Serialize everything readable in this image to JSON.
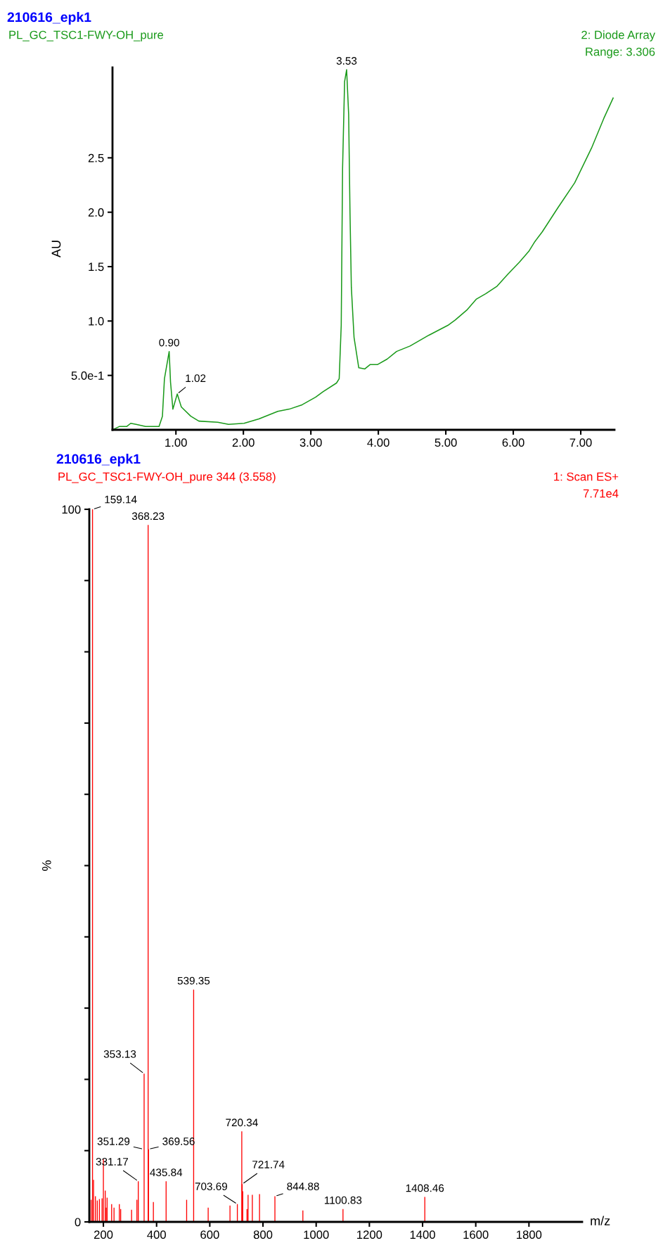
{
  "chart_data": [
    {
      "type": "line",
      "title": "210616_epk1",
      "subtitle": "PL_GC_TSC1-FWY-OH_pure",
      "ylabel": "AU",
      "annotations": [
        "2: Diode Array",
        "Range: 3.306",
        {
          "text": "3.53",
          "x": 3.53,
          "y": 3.31
        },
        {
          "text": "0.90",
          "x": 0.9,
          "y": 0.72
        },
        {
          "text": "1.02",
          "x": 1.02,
          "y": 0.33
        }
      ],
      "xlim": [
        0.06,
        7.5
      ],
      "ylim": [
        0,
        3.33
      ],
      "xticks": [
        {
          "value": 1,
          "label": "1.00"
        },
        {
          "value": 2,
          "label": "2.00"
        },
        {
          "value": 3,
          "label": "3.00"
        },
        {
          "value": 4,
          "label": "4.00"
        },
        {
          "value": 5,
          "label": "5.00"
        },
        {
          "value": 6,
          "label": "6.00"
        },
        {
          "value": 7,
          "label": "7.00"
        }
      ],
      "yticks": [
        {
          "value": 0.5,
          "label": "5.0e-1"
        },
        {
          "value": 1,
          "label": "1.0"
        },
        {
          "value": 1.5,
          "label": "1.5"
        },
        {
          "value": 2,
          "label": "2.0"
        },
        {
          "value": 2.5,
          "label": "2.5"
        }
      ],
      "grid": false,
      "legend": false,
      "series": [
        {
          "color": "#1a9a1a",
          "x": [
            0.06,
            0.16,
            0.27,
            0.33,
            0.41,
            0.55,
            0.75,
            0.8,
            0.83,
            0.9,
            0.92,
            0.955,
            1.02,
            1.08,
            1.22,
            1.34,
            1.62,
            1.78,
            2.01,
            2.23,
            2.51,
            2.68,
            2.87,
            3.07,
            3.18,
            3.38,
            3.42,
            3.45,
            3.47,
            3.5,
            3.53,
            3.56,
            3.58,
            3.6,
            3.64,
            3.71,
            3.8,
            3.88,
            3.99,
            4.13,
            4.27,
            4.47,
            4.75,
            5.03,
            5.14,
            5.31,
            5.45,
            5.59,
            5.76,
            5.92,
            6.09,
            6.23,
            6.32,
            6.43,
            6.66,
            6.91,
            7.16,
            7.34,
            7.48
          ],
          "values": [
            0.0,
            0.03,
            0.03,
            0.06,
            0.05,
            0.03,
            0.03,
            0.125,
            0.47,
            0.72,
            0.44,
            0.19,
            0.33,
            0.21,
            0.125,
            0.08,
            0.07,
            0.05,
            0.06,
            0.1,
            0.17,
            0.19,
            0.23,
            0.3,
            0.35,
            0.43,
            0.47,
            0.96,
            2.4,
            3.2,
            3.31,
            2.9,
            2.0,
            1.31,
            0.85,
            0.57,
            0.56,
            0.6,
            0.6,
            0.65,
            0.72,
            0.77,
            0.87,
            0.96,
            1.01,
            1.1,
            1.2,
            1.25,
            1.32,
            1.43,
            1.54,
            1.64,
            1.73,
            1.82,
            2.04,
            2.27,
            2.59,
            2.86,
            3.05
          ]
        }
      ]
    },
    {
      "type": "bar",
      "title": "210616_epk1",
      "subtitle": "PL_GC_TSC1-FWY-OH_pure 344 (3.558)",
      "ylabel": "%",
      "xlabel": "m/z",
      "annotations": [
        "1: Scan ES+",
        "7.71e4",
        {
          "text": "159.14",
          "x": 159.14,
          "y": 100
        },
        {
          "text": "368.23",
          "x": 368.23,
          "y": 97.8
        },
        {
          "text": "539.35",
          "x": 539.35,
          "y": 32.6
        },
        {
          "text": "353.13",
          "x": 353.13,
          "y": 20.8
        },
        {
          "text": "720.34",
          "x": 720.34,
          "y": 12.7
        },
        {
          "text": "351.29",
          "x": 351.29,
          "y": 10.2
        },
        {
          "text": "369.56",
          "x": 369.56,
          "y": 10.2
        },
        {
          "text": "331.17",
          "x": 331.17,
          "y": 5.7
        },
        {
          "text": "435.84",
          "x": 435.84,
          "y": 5.7
        },
        {
          "text": "721.74",
          "x": 721.74,
          "y": 5.3
        },
        {
          "text": "703.69",
          "x": 703.69,
          "y": 2.5
        },
        {
          "text": "844.88",
          "x": 844.88,
          "y": 3.6
        },
        {
          "text": "1100.83",
          "x": 1100.83,
          "y": 1.8
        },
        {
          "text": "1408.46",
          "x": 1408.46,
          "y": 3.5
        }
      ],
      "xlim": [
        147,
        2000
      ],
      "ylim": [
        0,
        100
      ],
      "xticks": [
        200,
        400,
        600,
        800,
        1000,
        1200,
        1400,
        1600,
        1800
      ],
      "yticks": [
        0,
        {
          "value": 10,
          "label": null
        },
        {
          "value": 20,
          "label": null
        },
        {
          "value": 30,
          "label": null
        },
        {
          "value": 40,
          "label": null
        },
        {
          "value": 50,
          "label": null
        },
        {
          "value": 60,
          "label": null
        },
        {
          "value": 70,
          "label": null
        },
        {
          "value": 80,
          "label": null
        },
        {
          "value": 90,
          "label": null
        },
        100
      ],
      "grid": false,
      "legend": false,
      "series": [
        {
          "color": "#ff0000",
          "x": [
            153.9,
            159.14,
            163,
            170,
            177,
            185,
            195,
            200,
            207,
            210.6,
            214,
            231,
            240,
            260,
            265,
            306,
            326,
            331.17,
            351.29,
            353.13,
            368.23,
            369.56,
            388,
            435.84,
            513,
            539.35,
            594,
            676,
            703.69,
            720.34,
            721.74,
            724,
            740,
            744,
            760,
            787,
            844.88,
            950,
            1100.83,
            1408.46
          ],
          "values": [
            3.1,
            100,
            5.9,
            3.6,
            3.0,
            3.2,
            3.3,
            8.8,
            4.4,
            2.0,
            3.4,
            2.5,
            2.0,
            2.5,
            1.8,
            1.7,
            3.1,
            5.7,
            null,
            20.8,
            97.8,
            10.2,
            2.8,
            5.7,
            3.1,
            32.6,
            2.0,
            2.3,
            2.5,
            12.7,
            5.3,
            4.3,
            1.8,
            3.8,
            3.8,
            3.9,
            3.6,
            1.6,
            1.8,
            3.5
          ]
        }
      ]
    }
  ]
}
